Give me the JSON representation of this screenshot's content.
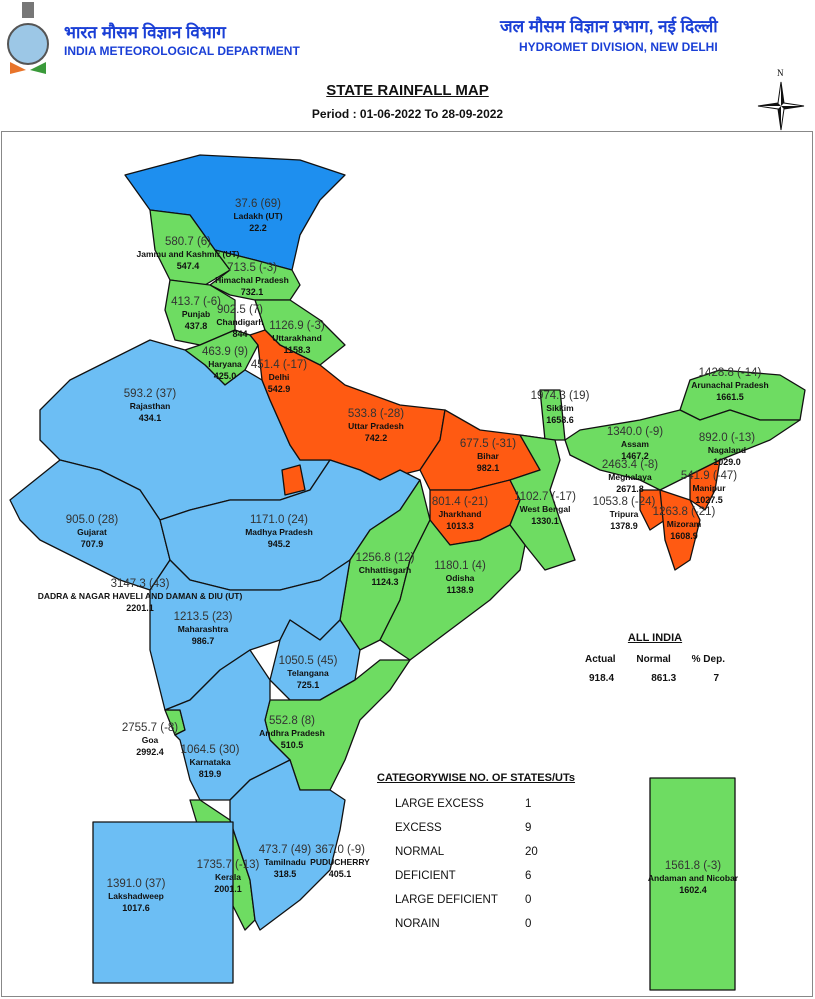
{
  "header": {
    "org_hindi": "भारत मौसम विज्ञान विभाग",
    "org_english": "INDIA METEOROLOGICAL DEPARTMENT",
    "division_hindi": "जल मौसम विज्ञान प्रभाग, नई दिल्ली",
    "division_english": "HYDROMET DIVISION, NEW DELHI",
    "logo": "imd-emblem"
  },
  "title": "STATE RAINFALL MAP",
  "period": "Period : 01-06-2022 To 28-09-2022",
  "compass": {
    "label": "N",
    "icon": "north-arrow-compass"
  },
  "colors": {
    "large_excess": "#1E8FEF",
    "excess": "#6CBEF4",
    "normal": "#6EDC62",
    "deficient": "#FF5A12"
  },
  "states": [
    {
      "name": "Ladakh (UT)",
      "actual_dep": "37.6 (69)",
      "normal": "22.2",
      "category": "large_excess"
    },
    {
      "name": "Jammu and Kashmir (UT)",
      "actual_dep": "580.7 (6)",
      "normal": "547.4",
      "category": "normal"
    },
    {
      "name": "Himachal Pradesh",
      "actual_dep": "713.5 (-3)",
      "normal": "732.1",
      "category": "normal"
    },
    {
      "name": "Punjab",
      "actual_dep": "413.7 (-6)",
      "normal": "437.8",
      "category": "normal"
    },
    {
      "name": "Chandigarh",
      "actual_dep": "902.5 (7)",
      "normal": "844",
      "category": "normal"
    },
    {
      "name": "Uttarakhand",
      "actual_dep": "1126.9 (-3)",
      "normal": "1158.3",
      "category": "normal"
    },
    {
      "name": "Haryana",
      "actual_dep": "463.9 (9)",
      "normal": "425.0",
      "category": "normal"
    },
    {
      "name": "Delhi",
      "actual_dep": "451.4 (-17)",
      "normal": "542.9",
      "category": "normal"
    },
    {
      "name": "Rajasthan",
      "actual_dep": "593.2 (37)",
      "normal": "434.1",
      "category": "excess"
    },
    {
      "name": "Uttar Pradesh",
      "actual_dep": "533.8 (-28)",
      "normal": "742.2",
      "category": "deficient"
    },
    {
      "name": "Bihar",
      "actual_dep": "677.5 (-31)",
      "normal": "982.1",
      "category": "deficient"
    },
    {
      "name": "Sikkim",
      "actual_dep": "1974.3 (19)",
      "normal": "1658.6",
      "category": "normal"
    },
    {
      "name": "Arunachal Pradesh",
      "actual_dep": "1428.8 (-14)",
      "normal": "1661.5",
      "category": "normal"
    },
    {
      "name": "Assam",
      "actual_dep": "1340.0 (-9)",
      "normal": "1467.2",
      "category": "normal"
    },
    {
      "name": "Nagaland",
      "actual_dep": "892.0 (-13)",
      "normal": "1029.0",
      "category": "normal"
    },
    {
      "name": "Meghalaya",
      "actual_dep": "2463.4 (-8)",
      "normal": "2671.8",
      "category": "normal"
    },
    {
      "name": "Manipur",
      "actual_dep": "541.9 (-47)",
      "normal": "1027.5",
      "category": "deficient"
    },
    {
      "name": "Tripura",
      "actual_dep": "1053.8 (-24)",
      "normal": "1378.9",
      "category": "deficient"
    },
    {
      "name": "Mizoram",
      "actual_dep": "1263.8 (-21)",
      "normal": "1608.9",
      "category": "deficient"
    },
    {
      "name": "Gujarat",
      "actual_dep": "905.0 (28)",
      "normal": "707.9",
      "category": "excess"
    },
    {
      "name": "Madhya Pradesh",
      "actual_dep": "1171.0 (24)",
      "normal": "945.2",
      "category": "excess"
    },
    {
      "name": "Jharkhand",
      "actual_dep": "801.4 (-21)",
      "normal": "1013.3",
      "category": "deficient"
    },
    {
      "name": "West Bengal",
      "actual_dep": "1102.7 (-17)",
      "normal": "1330.1",
      "category": "normal"
    },
    {
      "name": "Chhattisgarh",
      "actual_dep": "1256.8 (12)",
      "normal": "1124.3",
      "category": "normal"
    },
    {
      "name": "Odisha",
      "actual_dep": "1180.1 (4)",
      "normal": "1138.9",
      "category": "normal"
    },
    {
      "name": "DADRA & NAGAR HAVELI AND DAMAN & DIU (UT)",
      "actual_dep": "3147.3 (43)",
      "normal": "2201.1",
      "category": "excess"
    },
    {
      "name": "Maharashtra",
      "actual_dep": "1213.5 (23)",
      "normal": "986.7",
      "category": "excess"
    },
    {
      "name": "Telangana",
      "actual_dep": "1050.5 (45)",
      "normal": "725.1",
      "category": "excess"
    },
    {
      "name": "Andhra Pradesh",
      "actual_dep": "552.8 (8)",
      "normal": "510.5",
      "category": "normal"
    },
    {
      "name": "Goa",
      "actual_dep": "2755.7 (-8)",
      "normal": "2992.4",
      "category": "normal"
    },
    {
      "name": "Karnataka",
      "actual_dep": "1064.5 (30)",
      "normal": "819.9",
      "category": "excess"
    },
    {
      "name": "Kerala",
      "actual_dep": "1735.7 (-13)",
      "normal": "2001.1",
      "category": "normal"
    },
    {
      "name": "Tamilnadu",
      "actual_dep": "473.7 (49)",
      "normal": "318.5",
      "category": "excess"
    },
    {
      "name": "PUDUCHERRY",
      "actual_dep": "367.0 (-9)",
      "normal": "405.1",
      "category": "normal"
    },
    {
      "name": "Lakshadweep",
      "actual_dep": "1391.0 (37)",
      "normal": "1017.6",
      "category": "excess"
    },
    {
      "name": "Andaman and Nicobar",
      "actual_dep": "1561.8 (-3)",
      "normal": "1602.4",
      "category": "normal"
    }
  ],
  "all_india": {
    "title": "ALL INDIA",
    "headers": [
      "Actual",
      "Normal",
      "% Dep."
    ],
    "values": [
      "918.4",
      "861.3",
      "7"
    ]
  },
  "categorywise": {
    "title": "CATEGORYWISE NO. OF STATES/UTs",
    "rows": [
      {
        "label": "LARGE EXCESS",
        "count": "1"
      },
      {
        "label": "EXCESS",
        "count": "9"
      },
      {
        "label": "NORMAL",
        "count": "20"
      },
      {
        "label": "DEFICIENT",
        "count": "6"
      },
      {
        "label": "LARGE DEFICIENT",
        "count": "0"
      },
      {
        "label": "NORAIN",
        "count": "0"
      }
    ]
  }
}
